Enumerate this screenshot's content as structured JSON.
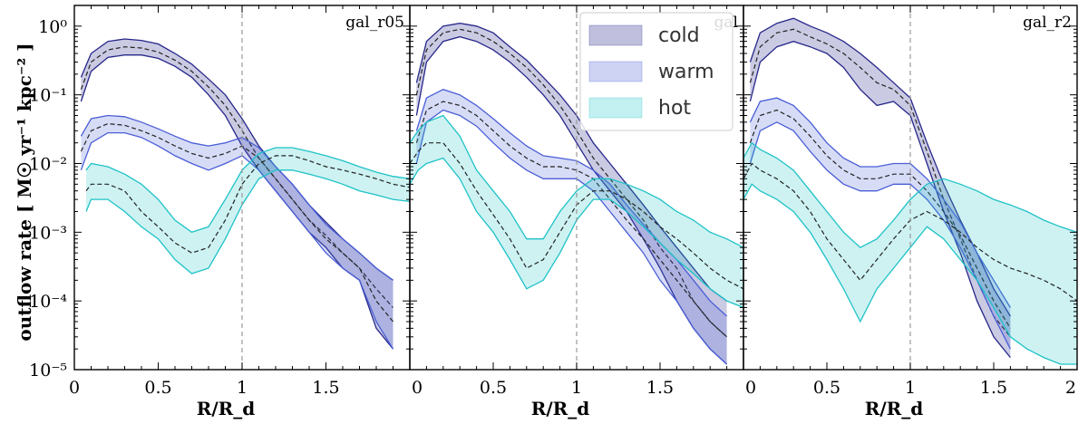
{
  "chart_data": {
    "type": "area",
    "title": "",
    "xlabel": "R/R_d",
    "ylabel": "outflow rate [ M☉ yr⁻¹ kpc⁻² ]",
    "yscale": "log",
    "ylim": [
      1e-05,
      2
    ],
    "grid": false,
    "legend_position": "top-right of middle panel",
    "legend": [
      {
        "name": "cold",
        "color": "#3f3f9a"
      },
      {
        "name": "warm",
        "color": "#4a5ed6"
      },
      {
        "name": "hot",
        "color": "#21c6c6"
      }
    ],
    "y_ticks": [
      {
        "value": 1,
        "label": "10⁰"
      },
      {
        "value": 0.1,
        "label": "10⁻¹"
      },
      {
        "value": 0.01,
        "label": "10⁻²"
      },
      {
        "value": 0.001,
        "label": "10⁻³"
      },
      {
        "value": 0.0001,
        "label": "10⁻⁴"
      },
      {
        "value": 1e-05,
        "label": "10⁻⁵"
      }
    ],
    "reference_line": {
      "x": 1.0,
      "style": "dashed",
      "color": "#999999"
    },
    "panels": [
      {
        "label": "gal_r05",
        "xlim": [
          0,
          2
        ],
        "x_ticks": [
          {
            "value": 0,
            "label": "0"
          },
          {
            "value": 0.5,
            "label": "0.5"
          },
          {
            "value": 1,
            "label": "1"
          },
          {
            "value": 1.5,
            "label": "1.5"
          }
        ],
        "series": [
          {
            "name": "cold",
            "x": [
              0.04,
              0.1,
              0.2,
              0.3,
              0.4,
              0.5,
              0.6,
              0.7,
              0.8,
              0.9,
              1.0,
              1.1,
              1.2,
              1.3,
              1.4,
              1.5,
              1.6,
              1.7,
              1.8,
              1.9
            ],
            "lower": [
              0.08,
              0.22,
              0.35,
              0.38,
              0.38,
              0.34,
              0.26,
              0.18,
              0.1,
              0.05,
              0.018,
              0.008,
              0.004,
              0.002,
              0.001,
              0.0006,
              0.0003,
              0.0002,
              4e-05,
              2e-05
            ],
            "median": [
              0.12,
              0.3,
              0.45,
              0.5,
              0.48,
              0.42,
              0.32,
              0.22,
              0.13,
              0.07,
              0.03,
              0.012,
              0.006,
              0.003,
              0.0015,
              0.0009,
              0.0005,
              0.0003,
              0.00015,
              8e-05
            ],
            "upper": [
              0.18,
              0.4,
              0.6,
              0.65,
              0.62,
              0.55,
              0.4,
              0.28,
              0.17,
              0.1,
              0.045,
              0.018,
              0.009,
              0.005,
              0.0025,
              0.0014,
              0.0008,
              0.0005,
              0.0003,
              0.0002
            ]
          },
          {
            "name": "warm",
            "x": [
              0.04,
              0.1,
              0.2,
              0.3,
              0.4,
              0.5,
              0.6,
              0.7,
              0.8,
              0.9,
              1.0,
              1.1,
              1.2,
              1.3,
              1.4,
              1.5,
              1.6,
              1.7,
              1.8,
              1.9
            ],
            "lower": [
              0.008,
              0.02,
              0.028,
              0.028,
              0.024,
              0.018,
              0.013,
              0.01,
              0.008,
              0.01,
              0.013,
              0.008,
              0.004,
              0.002,
              0.001,
              0.0005,
              0.0003,
              0.0002,
              5e-05,
              2e-05
            ],
            "median": [
              0.015,
              0.03,
              0.038,
              0.036,
              0.03,
              0.024,
              0.018,
              0.014,
              0.012,
              0.014,
              0.018,
              0.012,
              0.006,
              0.003,
              0.0015,
              0.0008,
              0.0005,
              0.0003,
              0.0001,
              5e-05
            ],
            "upper": [
              0.025,
              0.045,
              0.05,
              0.048,
              0.04,
              0.032,
              0.025,
              0.02,
              0.018,
              0.02,
              0.024,
              0.017,
              0.009,
              0.005,
              0.0025,
              0.0013,
              0.0008,
              0.0005,
              0.0003,
              0.0002
            ]
          },
          {
            "name": "hot",
            "x": [
              0.07,
              0.1,
              0.2,
              0.3,
              0.4,
              0.5,
              0.6,
              0.7,
              0.8,
              0.9,
              1.0,
              1.1,
              1.2,
              1.3,
              1.4,
              1.5,
              1.6,
              1.7,
              1.8,
              1.9,
              2.0
            ],
            "lower": [
              0.002,
              0.003,
              0.003,
              0.002,
              0.0012,
              0.0008,
              0.0004,
              0.00025,
              0.0003,
              0.0008,
              0.0025,
              0.006,
              0.008,
              0.008,
              0.007,
              0.006,
              0.005,
              0.004,
              0.0035,
              0.003,
              0.0028
            ],
            "median": [
              0.004,
              0.005,
              0.005,
              0.004,
              0.002,
              0.0012,
              0.0007,
              0.0005,
              0.0006,
              0.0015,
              0.005,
              0.01,
              0.013,
              0.013,
              0.011,
              0.009,
              0.008,
              0.007,
              0.006,
              0.005,
              0.0045
            ],
            "upper": [
              0.008,
              0.01,
              0.009,
              0.007,
              0.005,
              0.003,
              0.0015,
              0.001,
              0.0012,
              0.003,
              0.008,
              0.014,
              0.017,
              0.017,
              0.015,
              0.013,
              0.011,
              0.009,
              0.0075,
              0.0065,
              0.006
            ]
          }
        ]
      },
      {
        "label": "gal",
        "xlim": [
          0,
          2
        ],
        "x_ticks": [
          {
            "value": 0,
            "label": "0"
          },
          {
            "value": 0.5,
            "label": "0.5"
          },
          {
            "value": 1,
            "label": "1"
          },
          {
            "value": 1.5,
            "label": "1.5"
          }
        ],
        "series": [
          {
            "name": "cold",
            "x": [
              0.04,
              0.1,
              0.2,
              0.3,
              0.4,
              0.5,
              0.6,
              0.7,
              0.8,
              0.9,
              1.0,
              1.1,
              1.2,
              1.3,
              1.4,
              1.5,
              1.6,
              1.7,
              1.8,
              1.9
            ],
            "lower": [
              0.05,
              0.3,
              0.6,
              0.7,
              0.6,
              0.45,
              0.3,
              0.18,
              0.1,
              0.05,
              0.02,
              0.008,
              0.004,
              0.002,
              0.0008,
              0.0003,
              0.0001,
              4e-05,
              2e-05,
              1.2e-05
            ],
            "median": [
              0.1,
              0.45,
              0.8,
              0.9,
              0.8,
              0.6,
              0.4,
              0.25,
              0.14,
              0.07,
              0.03,
              0.012,
              0.006,
              0.003,
              0.0015,
              0.0006,
              0.0003,
              0.0001,
              5e-05,
              3e-05
            ],
            "upper": [
              0.15,
              0.6,
              1.0,
              1.1,
              1.0,
              0.8,
              0.5,
              0.32,
              0.18,
              0.1,
              0.05,
              0.02,
              0.01,
              0.005,
              0.0025,
              0.0012,
              0.0006,
              0.0003,
              0.00015,
              0.0001
            ]
          },
          {
            "name": "warm",
            "x": [
              0.04,
              0.1,
              0.2,
              0.3,
              0.4,
              0.5,
              0.6,
              0.7,
              0.8,
              0.9,
              1.0,
              1.1,
              1.2,
              1.3,
              1.4,
              1.5,
              1.6,
              1.7,
              1.8,
              1.9
            ],
            "lower": [
              0.01,
              0.04,
              0.06,
              0.05,
              0.035,
              0.02,
              0.012,
              0.008,
              0.006,
              0.006,
              0.006,
              0.004,
              0.002,
              0.001,
              0.0005,
              0.0002,
              0.0001,
              4e-05,
              2e-05,
              1.2e-05
            ],
            "median": [
              0.02,
              0.06,
              0.08,
              0.07,
              0.05,
              0.03,
              0.018,
              0.012,
              0.009,
              0.009,
              0.008,
              0.006,
              0.003,
              0.0015,
              0.0008,
              0.0004,
              0.0002,
              0.0001,
              5e-05,
              3e-05
            ],
            "upper": [
              0.03,
              0.09,
              0.12,
              0.1,
              0.07,
              0.045,
              0.028,
              0.018,
              0.013,
              0.012,
              0.011,
              0.008,
              0.005,
              0.0025,
              0.0013,
              0.0007,
              0.0004,
              0.0002,
              0.0001,
              6e-05
            ]
          },
          {
            "name": "hot",
            "x": [
              0.0,
              0.05,
              0.1,
              0.2,
              0.3,
              0.4,
              0.5,
              0.6,
              0.7,
              0.8,
              0.9,
              1.0,
              1.1,
              1.2,
              1.3,
              1.4,
              1.5,
              1.6,
              1.7,
              1.8,
              1.9,
              2.0
            ],
            "lower": [
              0.005,
              0.008,
              0.01,
              0.012,
              0.006,
              0.002,
              0.001,
              0.0004,
              0.00015,
              0.0002,
              0.0005,
              0.0015,
              0.003,
              0.003,
              0.002,
              0.0012,
              0.0007,
              0.0004,
              0.00025,
              0.00015,
              0.0001,
              8e-05
            ],
            "median": [
              0.01,
              0.015,
              0.02,
              0.02,
              0.01,
              0.004,
              0.0018,
              0.0008,
              0.0003,
              0.0004,
              0.001,
              0.0025,
              0.004,
              0.004,
              0.003,
              0.002,
              0.0012,
              0.0008,
              0.0005,
              0.0003,
              0.0002,
              0.00015
            ],
            "upper": [
              0.02,
              0.03,
              0.04,
              0.05,
              0.025,
              0.008,
              0.004,
              0.002,
              0.0008,
              0.0008,
              0.002,
              0.004,
              0.006,
              0.006,
              0.005,
              0.004,
              0.003,
              0.002,
              0.0015,
              0.001,
              0.0008,
              0.0006
            ]
          }
        ]
      },
      {
        "label": "gal_r2",
        "xlim": [
          0,
          2
        ],
        "x_ticks": [
          {
            "value": 0,
            "label": "0"
          },
          {
            "value": 0.5,
            "label": "0.5"
          },
          {
            "value": 1,
            "label": "1"
          },
          {
            "value": 1.5,
            "label": "1.5"
          },
          {
            "value": 2,
            "label": "2"
          }
        ],
        "series": [
          {
            "name": "cold",
            "x": [
              0.04,
              0.1,
              0.2,
              0.3,
              0.4,
              0.5,
              0.6,
              0.7,
              0.8,
              0.9,
              1.0,
              1.1,
              1.2,
              1.3,
              1.4,
              1.5,
              1.6
            ],
            "lower": [
              0.08,
              0.3,
              0.5,
              0.6,
              0.5,
              0.4,
              0.25,
              0.12,
              0.07,
              0.08,
              0.05,
              0.01,
              0.002,
              0.0005,
              0.0001,
              3e-05,
              1.5e-05
            ],
            "median": [
              0.15,
              0.5,
              0.8,
              0.9,
              0.7,
              0.55,
              0.4,
              0.25,
              0.15,
              0.12,
              0.07,
              0.015,
              0.003,
              0.0008,
              0.0002,
              6e-05,
              3e-05
            ],
            "upper": [
              0.3,
              0.8,
              1.1,
              1.3,
              1.0,
              0.8,
              0.6,
              0.4,
              0.25,
              0.15,
              0.09,
              0.02,
              0.005,
              0.0015,
              0.0005,
              0.00015,
              6e-05
            ]
          },
          {
            "name": "warm",
            "x": [
              0.04,
              0.1,
              0.2,
              0.3,
              0.4,
              0.5,
              0.6,
              0.7,
              0.8,
              0.9,
              1.0,
              1.1,
              1.2,
              1.3,
              1.4,
              1.5,
              1.6
            ],
            "lower": [
              0.01,
              0.03,
              0.04,
              0.03,
              0.015,
              0.008,
              0.005,
              0.004,
              0.004,
              0.005,
              0.005,
              0.003,
              0.0015,
              0.0006,
              0.0002,
              6e-05,
              2e-05
            ],
            "median": [
              0.02,
              0.05,
              0.06,
              0.045,
              0.025,
              0.013,
              0.008,
              0.006,
              0.006,
              0.007,
              0.007,
              0.004,
              0.002,
              0.0009,
              0.0003,
              0.0001,
              4e-05
            ],
            "upper": [
              0.04,
              0.08,
              0.09,
              0.07,
              0.04,
              0.02,
              0.012,
              0.009,
              0.009,
              0.01,
              0.01,
              0.006,
              0.003,
              0.0014,
              0.0005,
              0.0002,
              8e-05
            ]
          },
          {
            "name": "hot",
            "x": [
              0.0,
              0.05,
              0.1,
              0.2,
              0.3,
              0.4,
              0.5,
              0.6,
              0.7,
              0.8,
              0.9,
              1.0,
              1.1,
              1.2,
              1.3,
              1.4,
              1.5,
              1.6,
              1.7,
              1.8,
              1.9,
              2.0
            ],
            "lower": [
              0.003,
              0.005,
              0.004,
              0.003,
              0.002,
              0.001,
              0.0004,
              0.00015,
              5e-05,
              0.00015,
              0.0003,
              0.0006,
              0.0012,
              0.0008,
              0.0004,
              0.0002,
              8e-05,
              3e-05,
              2e-05,
              1.5e-05,
              1.2e-05,
              1.2e-05
            ],
            "median": [
              0.006,
              0.01,
              0.008,
              0.006,
              0.004,
              0.002,
              0.0008,
              0.0004,
              0.0002,
              0.0004,
              0.0008,
              0.0015,
              0.002,
              0.0015,
              0.001,
              0.0006,
              0.0004,
              0.0003,
              0.00025,
              0.0002,
              0.00015,
              0.0001
            ],
            "upper": [
              0.012,
              0.02,
              0.016,
              0.012,
              0.008,
              0.004,
              0.002,
              0.001,
              0.0006,
              0.0008,
              0.0015,
              0.003,
              0.005,
              0.006,
              0.005,
              0.004,
              0.003,
              0.0025,
              0.002,
              0.0015,
              0.0012,
              0.001
            ]
          }
        ]
      }
    ]
  }
}
